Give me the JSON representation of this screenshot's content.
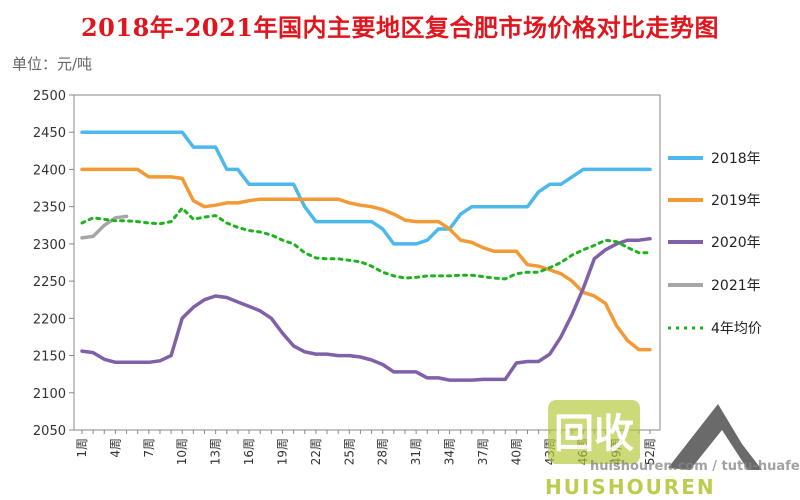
{
  "title": "2018年-2021年国内主要地区复合肥市场价格对比走势图",
  "unit_label": "单位：元/吨",
  "chart_data": {
    "type": "line",
    "title": "2018年-2021年国内主要地区复合肥市场价格对比走势图",
    "ylabel": "单位：元/吨",
    "ylim": [
      2050,
      2500
    ],
    "yticks": [
      2050,
      2100,
      2150,
      2200,
      2250,
      2300,
      2350,
      2400,
      2450,
      2500
    ],
    "xlim": [
      1,
      52
    ],
    "xtick_labels": [
      "1周",
      "4周",
      "7周",
      "10周",
      "13周",
      "16周",
      "19周",
      "22周",
      "25周",
      "28周",
      "31周",
      "34周",
      "37周",
      "40周",
      "43周",
      "46周",
      "49周",
      "52周"
    ],
    "legend_position": "right",
    "series": [
      {
        "name": "2018年",
        "color": "#4db8ec",
        "dash": false,
        "x": [
          1,
          2,
          3,
          4,
          5,
          6,
          7,
          8,
          9,
          10,
          11,
          12,
          13,
          14,
          15,
          16,
          17,
          18,
          19,
          20,
          21,
          22,
          23,
          24,
          25,
          26,
          27,
          28,
          29,
          30,
          31,
          32,
          33,
          34,
          35,
          36,
          37,
          38,
          39,
          40,
          41,
          42,
          43,
          44,
          45,
          46,
          47,
          48,
          49,
          50,
          51,
          52
        ],
        "values": [
          2450,
          2450,
          2450,
          2450,
          2450,
          2450,
          2450,
          2450,
          2450,
          2450,
          2430,
          2430,
          2430,
          2400,
          2400,
          2380,
          2380,
          2380,
          2380,
          2380,
          2350,
          2330,
          2330,
          2330,
          2330,
          2330,
          2330,
          2320,
          2300,
          2300,
          2300,
          2305,
          2320,
          2320,
          2340,
          2350,
          2350,
          2350,
          2350,
          2350,
          2350,
          2370,
          2380,
          2380,
          2390,
          2400,
          2400,
          2400,
          2400,
          2400,
          2400,
          2400
        ]
      },
      {
        "name": "2019年",
        "color": "#f29a35",
        "dash": false,
        "x": [
          1,
          2,
          3,
          4,
          5,
          6,
          7,
          8,
          9,
          10,
          11,
          12,
          13,
          14,
          15,
          16,
          17,
          18,
          19,
          20,
          21,
          22,
          23,
          24,
          25,
          26,
          27,
          28,
          29,
          30,
          31,
          32,
          33,
          34,
          35,
          36,
          37,
          38,
          39,
          40,
          41,
          42,
          43,
          44,
          45,
          46,
          47,
          48,
          49,
          50,
          51,
          52
        ],
        "values": [
          2400,
          2400,
          2400,
          2400,
          2400,
          2400,
          2390,
          2390,
          2390,
          2388,
          2358,
          2350,
          2352,
          2355,
          2355,
          2358,
          2360,
          2360,
          2360,
          2360,
          2360,
          2360,
          2360,
          2360,
          2355,
          2352,
          2350,
          2346,
          2340,
          2332,
          2330,
          2330,
          2330,
          2320,
          2305,
          2302,
          2295,
          2290,
          2290,
          2290,
          2272,
          2270,
          2265,
          2260,
          2250,
          2235,
          2230,
          2220,
          2190,
          2170,
          2158,
          2158
        ]
      },
      {
        "name": "2020年",
        "color": "#8060a8",
        "dash": false,
        "x": [
          1,
          2,
          3,
          4,
          5,
          6,
          7,
          8,
          9,
          10,
          11,
          12,
          13,
          14,
          15,
          16,
          17,
          18,
          19,
          20,
          21,
          22,
          23,
          24,
          25,
          26,
          27,
          28,
          29,
          30,
          31,
          32,
          33,
          34,
          35,
          36,
          37,
          38,
          39,
          40,
          41,
          42,
          43,
          44,
          45,
          46,
          47,
          48,
          49,
          50,
          51,
          52
        ],
        "values": [
          2156,
          2154,
          2145,
          2141,
          2141,
          2141,
          2141,
          2143,
          2150,
          2200,
          2215,
          2225,
          2230,
          2228,
          2222,
          2216,
          2210,
          2200,
          2180,
          2163,
          2155,
          2152,
          2152,
          2150,
          2150,
          2148,
          2144,
          2138,
          2128,
          2128,
          2128,
          2120,
          2120,
          2117,
          2117,
          2117,
          2118,
          2118,
          2118,
          2140,
          2142,
          2142,
          2152,
          2175,
          2205,
          2240,
          2280,
          2292,
          2300,
          2305,
          2305,
          2307
        ]
      },
      {
        "name": "2021年",
        "color": "#a6a6a6",
        "dash": false,
        "x": [
          1,
          2,
          3,
          4,
          5
        ],
        "values": [
          2308,
          2310,
          2325,
          2335,
          2337
        ]
      },
      {
        "name": "4年均价",
        "color": "#1db31d",
        "dash": true,
        "x": [
          1,
          2,
          3,
          4,
          5,
          6,
          7,
          8,
          9,
          10,
          11,
          12,
          13,
          14,
          15,
          16,
          17,
          18,
          19,
          20,
          21,
          22,
          23,
          24,
          25,
          26,
          27,
          28,
          29,
          30,
          31,
          32,
          33,
          34,
          35,
          36,
          37,
          38,
          39,
          40,
          41,
          42,
          43,
          44,
          45,
          46,
          47,
          48,
          49,
          50,
          51,
          52
        ],
        "values": [
          2328,
          2335,
          2333,
          2331,
          2331,
          2330,
          2328,
          2327,
          2330,
          2348,
          2333,
          2336,
          2338,
          2328,
          2322,
          2318,
          2316,
          2312,
          2305,
          2300,
          2288,
          2281,
          2280,
          2280,
          2278,
          2276,
          2270,
          2262,
          2257,
          2254,
          2255,
          2257,
          2257,
          2257,
          2258,
          2258,
          2256,
          2254,
          2253,
          2260,
          2262,
          2262,
          2268,
          2275,
          2285,
          2292,
          2298,
          2305,
          2303,
          2295,
          2288,
          2288
        ]
      }
    ]
  },
  "watermark": {
    "logo_text": "回收",
    "url_text": "huishouren.com / tutu-huafei",
    "brand_text": "HUISHOUREN"
  }
}
